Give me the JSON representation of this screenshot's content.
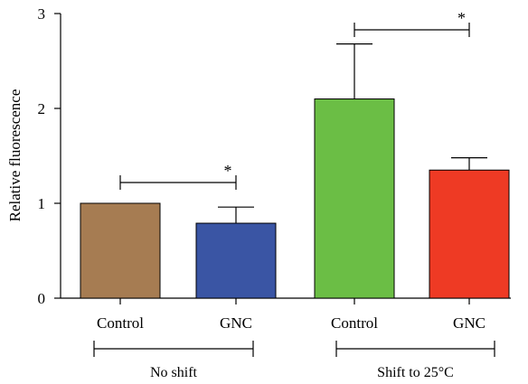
{
  "chart_data": {
    "type": "bar",
    "ylabel": "Relative fluorescence",
    "ylim": [
      0,
      3
    ],
    "yticks": [
      0,
      1,
      2,
      3
    ],
    "categories": [
      "Control",
      "GNC",
      "Control",
      "GNC"
    ],
    "values": [
      1.0,
      0.79,
      2.1,
      1.35
    ],
    "errors": [
      0,
      0.17,
      0.58,
      0.13
    ],
    "colors": [
      "#A67C52",
      "#3A55A4",
      "#6BBE45",
      "#EE3A24"
    ],
    "groups": [
      {
        "label": "No shift",
        "members": [
          0,
          1
        ]
      },
      {
        "label": "Shift to 25°C",
        "members": [
          2,
          3
        ]
      }
    ],
    "significance": [
      {
        "pair": [
          0,
          1
        ],
        "label": "*"
      },
      {
        "pair": [
          2,
          3
        ],
        "label": "*"
      }
    ]
  }
}
